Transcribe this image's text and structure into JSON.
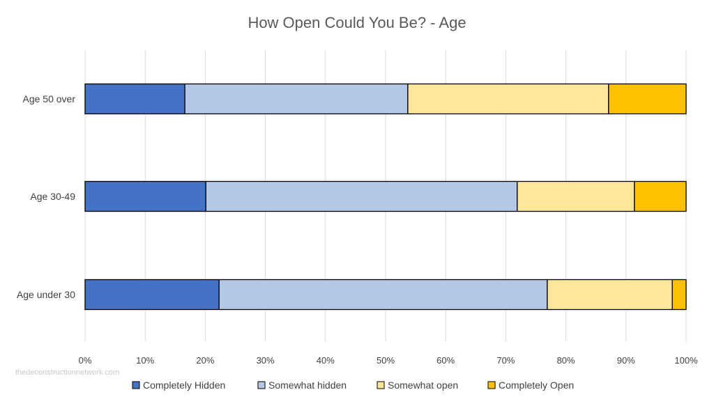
{
  "watermark": "thedeconstructionnetwork.com",
  "chart_data": {
    "type": "bar",
    "orientation": "horizontal",
    "stacked": "percent",
    "title": "How Open Could You Be? - Age",
    "categories": [
      "Age 50 over",
      "Age 30-49",
      "Age under 30"
    ],
    "xlim": [
      0,
      100
    ],
    "xticks": [
      "0%",
      "10%",
      "20%",
      "30%",
      "40%",
      "50%",
      "60%",
      "70%",
      "80%",
      "90%",
      "100%"
    ],
    "grid": true,
    "legend_position": "bottom",
    "series": [
      {
        "name": "Completely Hidden",
        "color": "#4472C4",
        "values": [
          16.6,
          20.1,
          22.3
        ]
      },
      {
        "name": "Somewhat hidden",
        "color": "#B4C7E7",
        "values": [
          37.1,
          51.8,
          54.6
        ]
      },
      {
        "name": "Somewhat open",
        "color": "#FFE699",
        "values": [
          33.4,
          19.5,
          20.8
        ]
      },
      {
        "name": "Completely Open",
        "color": "#FFC000",
        "values": [
          12.9,
          8.6,
          2.3
        ]
      }
    ]
  }
}
